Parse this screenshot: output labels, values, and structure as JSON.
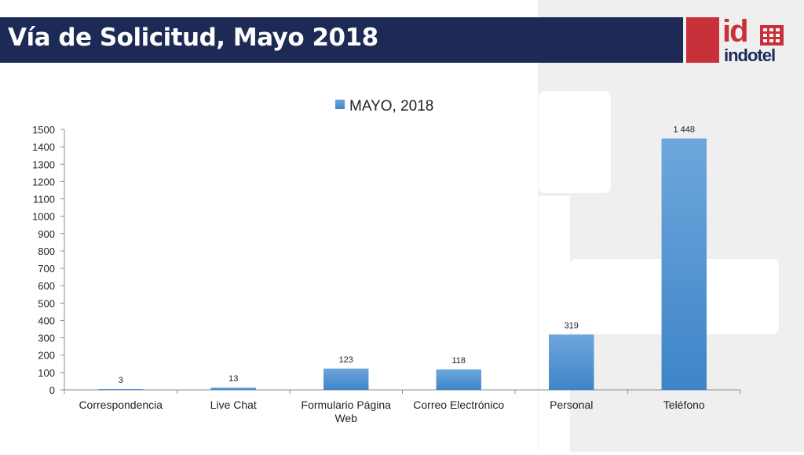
{
  "slide": {
    "title": "Vía de Solicitud, Mayo 2018"
  },
  "logo": {
    "mark": "id",
    "name": "indotel",
    "accent_color": "#c8303a",
    "brand_color": "#1c2a55"
  },
  "chart_data": {
    "type": "bar",
    "title": "",
    "xlabel": "",
    "ylabel": "",
    "categories": [
      "Correspondencia",
      "Live Chat",
      "Formulario Página Web",
      "Correo Electrónico",
      "Personal",
      "Teléfono"
    ],
    "series": [
      {
        "name": "MAYO, 2018",
        "values": [
          3,
          13,
          123,
          118,
          319,
          1448
        ],
        "data_labels": [
          "3",
          "13",
          "123",
          "118",
          "319",
          "1 448"
        ],
        "color": "#5b9bd5"
      }
    ],
    "ylim": [
      0,
      1500
    ],
    "yticks": [
      0,
      100,
      200,
      300,
      400,
      500,
      600,
      700,
      800,
      900,
      1000,
      1100,
      1200,
      1300,
      1400,
      1500
    ],
    "legend_position": "top",
    "grid": false
  }
}
